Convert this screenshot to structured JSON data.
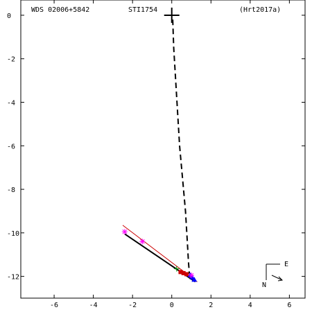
{
  "header": {
    "left": "WDS 02006+5842",
    "center": "STI1754",
    "right": "(Hrt2017a)"
  },
  "compass": {
    "east": "E",
    "north": "N"
  },
  "chart_data": {
    "type": "scatter",
    "title": "",
    "xlabel": "",
    "ylabel": "",
    "xlim": [
      -7.7,
      6.8
    ],
    "ylim": [
      -13.0,
      0.7
    ],
    "xticks": [
      -6,
      -4,
      -2,
      0,
      2,
      4,
      6
    ],
    "yticks": [
      0,
      -2,
      -4,
      -6,
      -8,
      -10,
      -12
    ],
    "grid": false,
    "primary": {
      "x": 0.0,
      "y": 0.0,
      "marker": "plus"
    },
    "orbit_path": {
      "style": "dashed",
      "color": "#000000",
      "points": [
        [
          0.05,
          -0.2
        ],
        [
          0.1,
          -1.5
        ],
        [
          0.2,
          -3.0
        ],
        [
          0.3,
          -4.5
        ],
        [
          0.4,
          -6.0
        ],
        [
          0.55,
          -7.5
        ],
        [
          0.7,
          -9.0
        ],
        [
          0.8,
          -10.5
        ],
        [
          0.85,
          -11.3
        ],
        [
          0.9,
          -11.9
        ]
      ]
    },
    "fit_lines": [
      {
        "color": "#cc0000",
        "from": [
          -2.5,
          -9.65
        ],
        "to": [
          1.3,
          -12.25
        ]
      },
      {
        "color": "#000000",
        "from": [
          -2.4,
          -10.05
        ],
        "to": [
          1.2,
          -12.25
        ]
      }
    ],
    "observations": [
      {
        "x": -2.4,
        "y": -9.95,
        "marker": "star",
        "color": "#ff00ff"
      },
      {
        "x": -1.5,
        "y": -10.4,
        "marker": "star",
        "color": "#ff00ff"
      },
      {
        "x": 0.25,
        "y": -11.65,
        "marker": "plus",
        "color": "#009900"
      },
      {
        "x": 0.45,
        "y": -11.8,
        "marker": "square",
        "color": "#cc0000"
      },
      {
        "x": 0.6,
        "y": -11.85,
        "marker": "square",
        "color": "#cc0000"
      },
      {
        "x": 0.75,
        "y": -11.9,
        "marker": "square",
        "color": "#cc0000"
      },
      {
        "x": 0.95,
        "y": -11.95,
        "marker": "triangle",
        "color": "#0000ff"
      },
      {
        "x": 1.05,
        "y": -12.05,
        "marker": "triangle",
        "color": "#0000ff"
      },
      {
        "x": 1.15,
        "y": -12.15,
        "marker": "triangle",
        "color": "#0000ff"
      },
      {
        "x": 1.0,
        "y": -11.95,
        "marker": "star",
        "color": "#ff00ff"
      }
    ]
  }
}
